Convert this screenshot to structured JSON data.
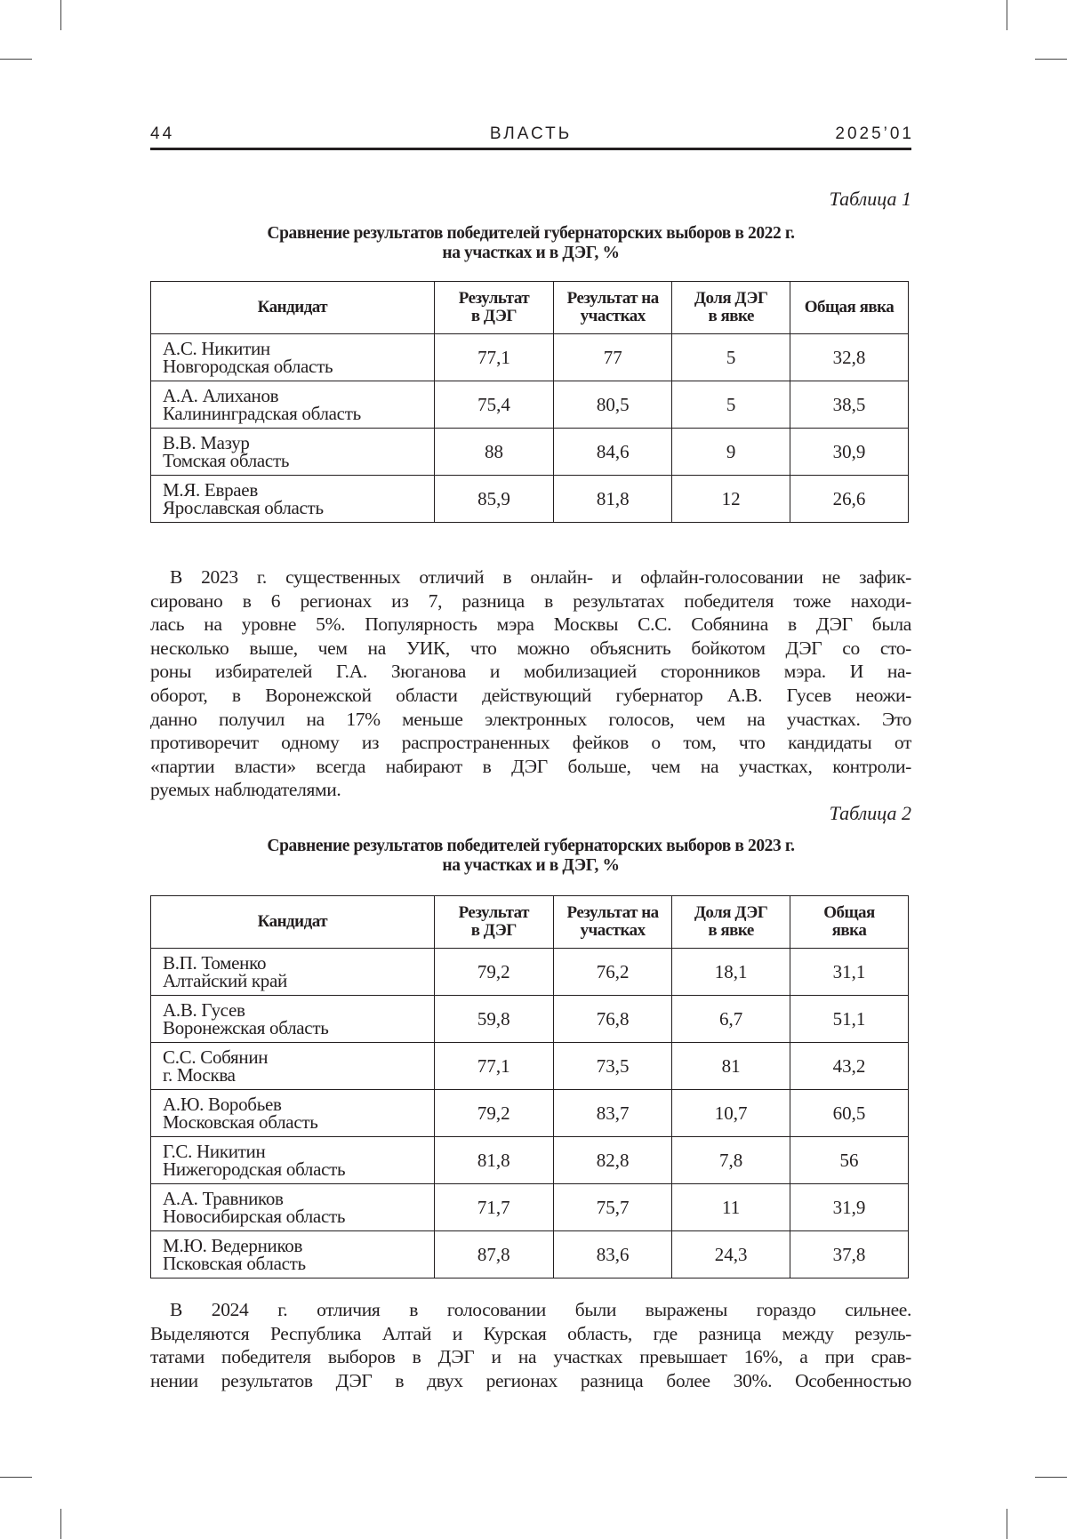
{
  "header": {
    "page_number": "44",
    "journal": "ВЛАСТЬ",
    "issue": "2025’01"
  },
  "table1": {
    "label": "Таблица 1",
    "title_lines": [
      "Сравнение результатов победителей губернаторских выборов в 2022 г.",
      "на участках и в ДЭГ, %"
    ],
    "columns": [
      [
        "Кандидат"
      ],
      [
        "Результат",
        "в ДЭГ"
      ],
      [
        "Результат на",
        "участках"
      ],
      [
        "Доля ДЭГ",
        "в явке"
      ],
      [
        "Общая явка"
      ]
    ],
    "rows": [
      {
        "name": "А.С. Никитин",
        "region": "Новгородская область",
        "values": [
          "77,1",
          "77",
          "5",
          "32,8"
        ]
      },
      {
        "name": "А.А. Алиханов",
        "region": "Калининградская область",
        "values": [
          "75,4",
          "80,5",
          "5",
          "38,5"
        ]
      },
      {
        "name": "В.В. Мазур",
        "region": "Томская область",
        "values": [
          "88",
          "84,6",
          "9",
          "30,9"
        ]
      },
      {
        "name": "М.Я. Евраев",
        "region": "Ярославская область",
        "values": [
          "85,9",
          "81,8",
          "12",
          "26,6"
        ]
      }
    ]
  },
  "paragraph1": [
    "В 2023 г. существенных отличий в онлайн- и офлайн-голосовании не зафик-",
    "сировано в 6 регионах из 7, разница в результатах победителя тоже находи-",
    "лась на уровне 5%. Популярность мэра Москвы С.С. Собянина в ДЭГ была",
    "несколько выше, чем на УИК, что можно объяснить бойкотом ДЭГ со сто-",
    "роны избирателей Г.А. Зюганова и мобилизацией сторонников мэра. И на-",
    "оборот, в Воронежской области действующий губернатор А.В. Гусев неожи-",
    "данно получил на 17% меньше электронных голосов, чем на участках. Это",
    "противоречит одному из распространенных фейков о том, что кандидаты от",
    "«партии власти» всегда набирают в ДЭГ больше, чем на участках, контроли-",
    "руемых наблюдателями."
  ],
  "table2": {
    "label": "Таблица 2",
    "title_lines": [
      "Сравнение результатов победителей губернаторских выборов в 2023 г.",
      "на участках и в ДЭГ, %"
    ],
    "columns": [
      [
        "Кандидат"
      ],
      [
        "Результат",
        "в ДЭГ"
      ],
      [
        "Результат на",
        "участках"
      ],
      [
        "Доля ДЭГ",
        "в явке"
      ],
      [
        "Общая",
        "явка"
      ]
    ],
    "rows": [
      {
        "name": "В.П. Томенко",
        "region": "Алтайский край",
        "values": [
          "79,2",
          "76,2",
          "18,1",
          "31,1"
        ]
      },
      {
        "name": "А.В. Гусев",
        "region": "Воронежская область",
        "values": [
          "59,8",
          "76,8",
          "6,7",
          "51,1"
        ]
      },
      {
        "name": "С.С. Собянин",
        "region": "г. Москва",
        "values": [
          "77,1",
          "73,5",
          "81",
          "43,2"
        ]
      },
      {
        "name": "А.Ю. Воробьев",
        "region": "Московская область",
        "values": [
          "79,2",
          "83,7",
          "10,7",
          "60,5"
        ]
      },
      {
        "name": "Г.С. Никитин",
        "region": "Нижегородская область",
        "values": [
          "81,8",
          "82,8",
          "7,8",
          "56"
        ]
      },
      {
        "name": "А.А. Травников",
        "region": "Новосибирская область",
        "values": [
          "71,7",
          "75,7",
          "11",
          "31,9"
        ]
      },
      {
        "name": "М.Ю. Ведерников",
        "region": "Псковская область",
        "values": [
          "87,8",
          "83,6",
          "24,3",
          "37,8"
        ]
      }
    ]
  },
  "paragraph2": [
    "В 2024 г. отличия в голосовании были выражены гораздо сильнее.",
    "Выделяются Республика Алтай и Курская область, где разница между резуль-",
    "татами победителя выборов в ДЭГ и на участках превышает 16%, а при срав-",
    "нении результатов ДЭГ в двух регионах разница более 30%. Особенностью"
  ]
}
